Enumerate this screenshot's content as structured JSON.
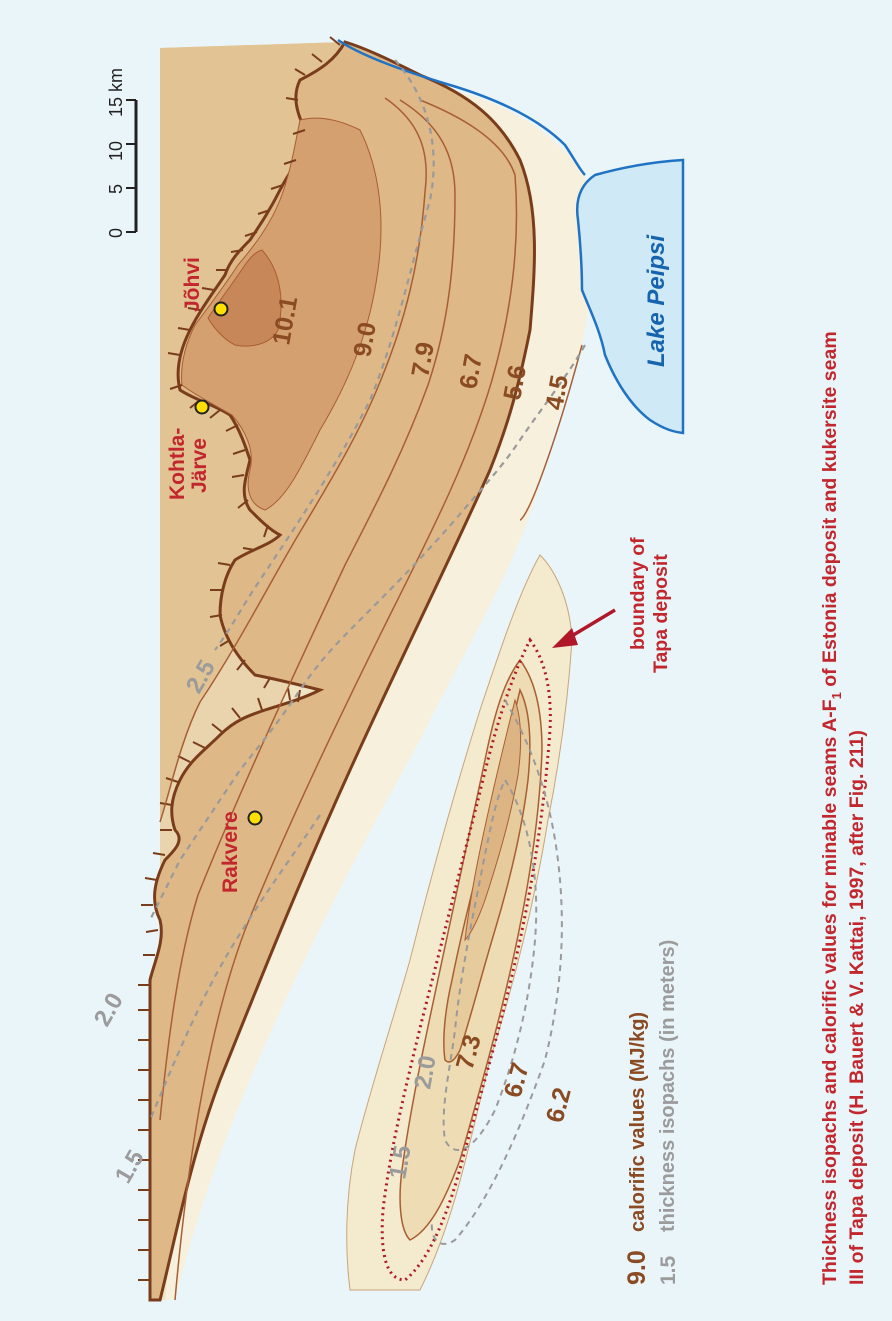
{
  "scale_bar": {
    "ticks": [
      "0",
      "5",
      "10",
      "15 km"
    ]
  },
  "towns": [
    {
      "name": "Jõhvi"
    },
    {
      "name": "Kohtla-"
    },
    {
      "name": "Järve"
    },
    {
      "name": "Rakvere"
    }
  ],
  "lake": {
    "name": "Lake  Peipsi"
  },
  "tapa_label": {
    "line1": "boundary of",
    "line2": "Tapa deposit"
  },
  "calorific_labels": [
    "10.1",
    "9.0",
    "7.9",
    "6.7",
    "5.6",
    "4.5",
    "7.3",
    "6.7",
    "6.2"
  ],
  "thickness_labels": [
    "2.5",
    "2.0",
    "1.5",
    "2.0",
    "1.5"
  ],
  "legend": {
    "calorific_value": "9.0",
    "calorific_text": "calorific values (MJ/kg)",
    "thickness_value": "1.5",
    "thickness_text": "thickness isopachs (in meters)"
  },
  "caption": {
    "line1": "Thickness isopachs and calorific values for minable seams A-F",
    "line1_sub": "1",
    "line1_end": " of Estonia deposit and kukersite seam",
    "line2": "III of Tapa deposit (H. Bauert & V. Kattai, 1997, after Fig. 211)"
  },
  "colors": {
    "background": "#eaf5fa",
    "zone_lightest": "#f6efd9",
    "zone_light": "#efe0bd",
    "zone_mid": "#e6ca9d",
    "zone_dark": "#dcb17f",
    "zone_darker": "#d39e6c",
    "zone_darkest": "#c98758",
    "outline": "#7a3d1c",
    "lake_fill": "#cfe9f6",
    "lake_shore": "#1f73c2",
    "town_marker": "#ffe000",
    "tapa_boundary": "#b0182a",
    "isopach": "#9a9a9a"
  }
}
